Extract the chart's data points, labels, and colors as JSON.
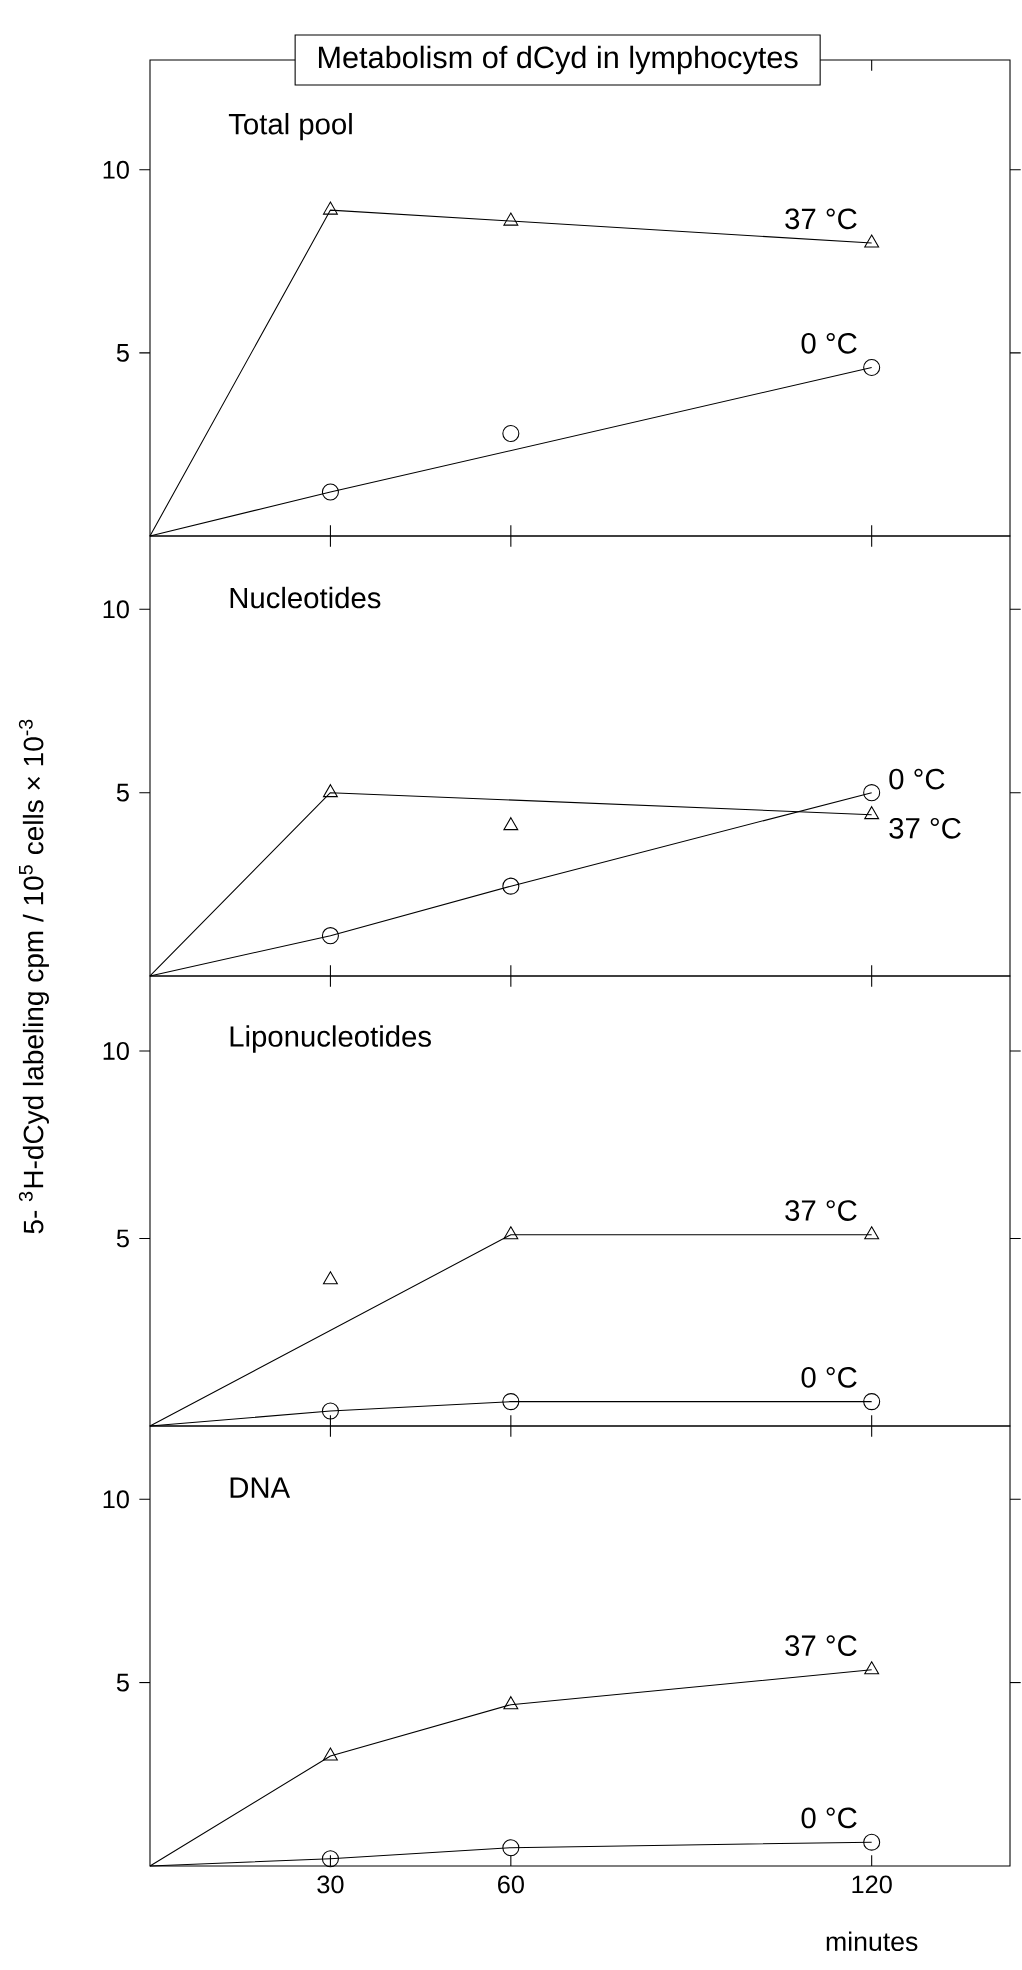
{
  "chart_data": [
    {
      "type": "line",
      "title": "Metabolism of dCyd in lymphocytes",
      "subtitle": "Total pool",
      "xlim": [
        0,
        143
      ],
      "xticks": [
        30,
        60,
        120
      ],
      "ylim": [
        0,
        13
      ],
      "yticks": [
        5,
        10
      ],
      "tick_labels": "y",
      "series": [
        {
          "name": "37 °C",
          "type": "scatter",
          "marker": "triangle",
          "color": "#000000",
          "x": [
            30,
            60,
            120
          ],
          "values": [
            8.9,
            8.6,
            8.0
          ]
        },
        {
          "marker": "none",
          "color": "#000000",
          "x": [
            0,
            30,
            60,
            120
          ],
          "values": [
            0,
            8.9,
            8.6,
            8.0
          ]
        },
        {
          "name": "0 °C",
          "type": "scatter",
          "marker": "circle",
          "color": "#000000",
          "x": [
            30,
            60,
            120
          ],
          "values": [
            1.2,
            2.8,
            4.6
          ]
        },
        {
          "marker": "none",
          "color": "#000000",
          "x": [
            0,
            30,
            120
          ],
          "values": [
            0,
            1.2,
            4.6
          ]
        }
      ]
    },
    {
      "type": "line",
      "title": "Nucleotides",
      "ylabel": "5- $^{3}$H-dCyd labeling cpm / 10$^{5}$ cells × 10$^{-3}$",
      "xlim": [
        0,
        143
      ],
      "xticks": [
        30,
        60,
        120
      ],
      "ylim": [
        0,
        12
      ],
      "yticks": [
        5,
        10
      ],
      "tick_labels": "y",
      "series": [
        {
          "name": "37 °C",
          "type": "scatter",
          "marker": "triangle",
          "color": "#000000",
          "x": [
            30,
            60,
            120
          ],
          "values": [
            5.0,
            4.1,
            4.4
          ]
        },
        {
          "marker": "none",
          "color": "#000000",
          "x": [
            0,
            30,
            120
          ],
          "values": [
            0,
            5.0,
            4.4
          ]
        },
        {
          "name": "0 °C",
          "type": "scatter",
          "marker": "circle",
          "color": "#000000",
          "x": [
            30,
            60,
            120
          ],
          "values": [
            1.1,
            2.45,
            5.0
          ]
        },
        {
          "marker": "none",
          "color": "#000000",
          "x": [
            0,
            30,
            60,
            120
          ],
          "values": [
            0,
            1.1,
            2.45,
            5.0
          ]
        }
      ]
    },
    {
      "type": "line",
      "title": "Liponucleotides",
      "xlim": [
        0,
        143
      ],
      "xticks": [
        30,
        60,
        120
      ],
      "ylim": [
        0,
        12
      ],
      "yticks": [
        5,
        10
      ],
      "tick_labels": "y",
      "series": [
        {
          "name": "37 °C",
          "type": "scatter",
          "marker": "triangle",
          "color": "#000000",
          "x": [
            30,
            60,
            120
          ],
          "values": [
            3.9,
            5.1,
            5.1
          ]
        },
        {
          "marker": "none",
          "color": "#000000",
          "x": [
            0,
            60,
            120
          ],
          "values": [
            0,
            5.1,
            5.1
          ]
        },
        {
          "name": "0 °C",
          "type": "scatter",
          "marker": "circle",
          "color": "#000000",
          "x": [
            30,
            60,
            120
          ],
          "values": [
            0.4,
            0.65,
            0.65
          ]
        },
        {
          "marker": "none",
          "color": "#000000",
          "x": [
            0,
            30,
            60,
            120
          ],
          "values": [
            0,
            0.4,
            0.65,
            0.65
          ]
        }
      ]
    },
    {
      "type": "line",
      "title": "DNA",
      "xlabel": "minutes",
      "xlim": [
        0,
        143
      ],
      "xticks": [
        30,
        60,
        120
      ],
      "ylim": [
        0,
        12
      ],
      "yticks": [
        5,
        10
      ],
      "series": [
        {
          "name": "37 °C",
          "type": "scatter",
          "marker": "triangle",
          "color": "#000000",
          "x": [
            30,
            60,
            120
          ],
          "values": [
            3.0,
            4.4,
            5.35
          ]
        },
        {
          "marker": "none",
          "color": "#000000",
          "x": [
            0,
            30,
            60,
            120
          ],
          "values": [
            0,
            3.0,
            4.4,
            5.35
          ]
        },
        {
          "name": "0 °C",
          "type": "scatter",
          "marker": "circle",
          "color": "#000000",
          "x": [
            30,
            60,
            120
          ],
          "values": [
            0.2,
            0.5,
            0.65
          ]
        },
        {
          "marker": "none",
          "color": "#000000",
          "x": [
            0,
            30,
            60,
            120
          ],
          "values": [
            0,
            0.2,
            0.5,
            0.65
          ]
        }
      ]
    }
  ]
}
